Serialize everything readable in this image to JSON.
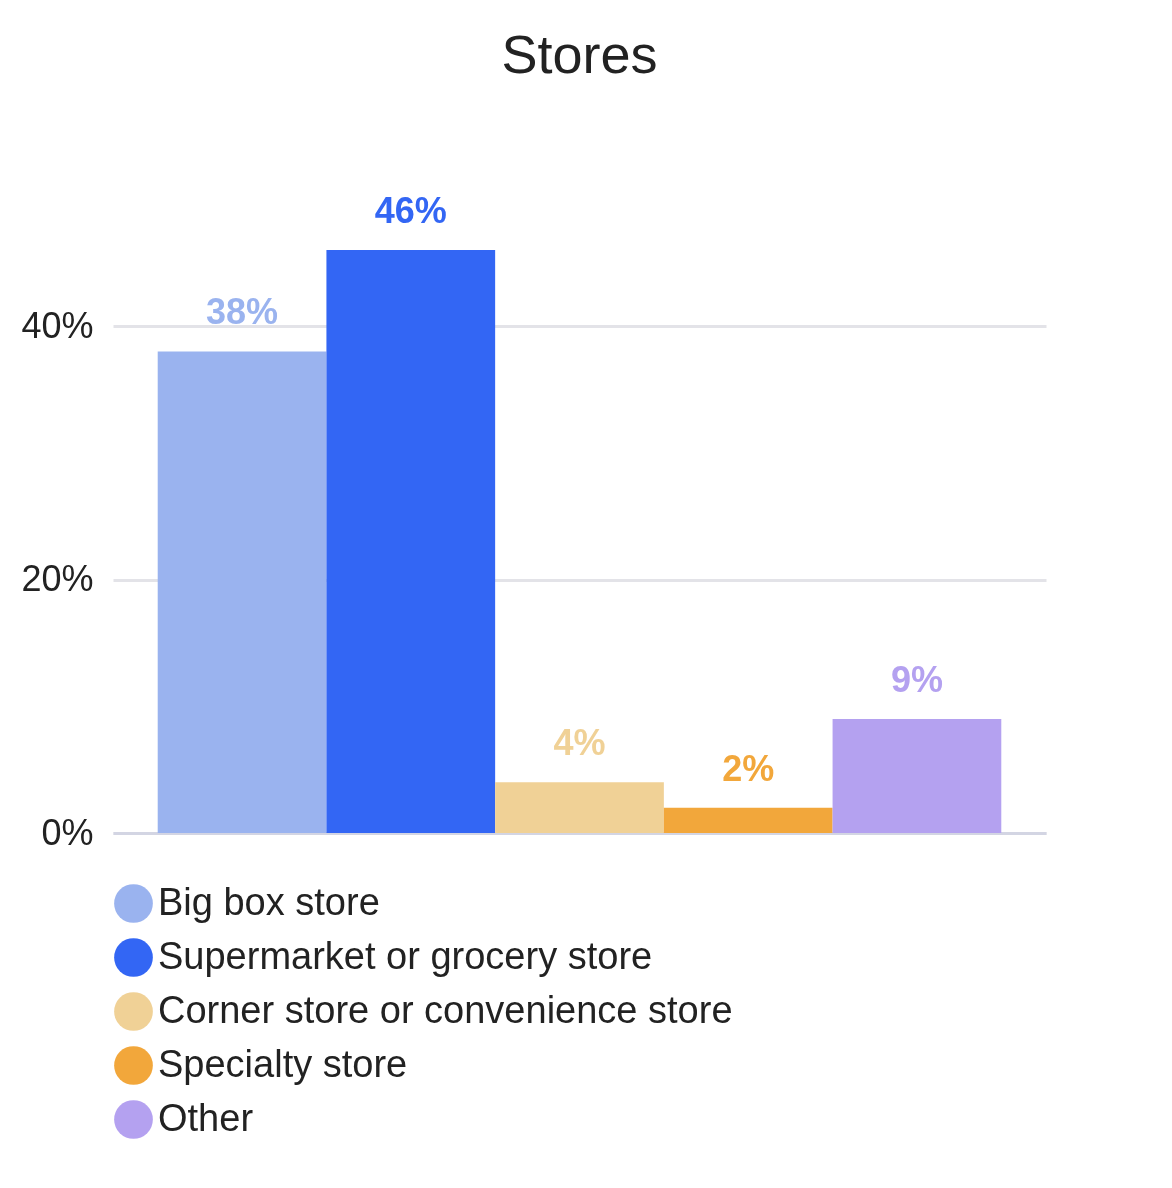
{
  "chart_data": {
    "type": "bar",
    "title": "Stores",
    "categories": [
      null
    ],
    "series": [
      {
        "name": "Big box store",
        "color": "#9ab3ef",
        "values": [
          38
        ],
        "value_labels": [
          "38%"
        ]
      },
      {
        "name": "Supermarket or grocery store",
        "color": "#3366f4",
        "values": [
          46
        ],
        "value_labels": [
          "46%"
        ]
      },
      {
        "name": "Corner store or convenience store",
        "color": "#f0d196",
        "values": [
          4
        ],
        "value_labels": [
          "4%"
        ]
      },
      {
        "name": "Specialty store",
        "color": "#f2a73b",
        "values": [
          2
        ],
        "value_labels": [
          "2%"
        ]
      },
      {
        "name": "Other",
        "color": "#b4a1f0",
        "values": [
          9
        ],
        "value_labels": [
          "9%"
        ]
      }
    ],
    "ylim": [
      0,
      46
    ],
    "yticks": [
      {
        "value": 0,
        "label": "0%"
      },
      {
        "value": 20,
        "label": "20%"
      },
      {
        "value": 40,
        "label": "40%"
      }
    ],
    "grid": "y",
    "legend": "bottom",
    "tick_labels": "y"
  }
}
